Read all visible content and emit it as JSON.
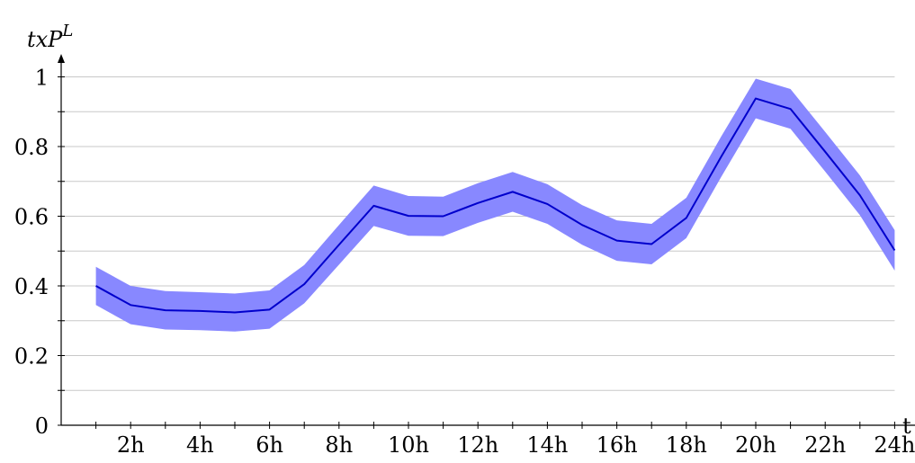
{
  "chart_data": {
    "type": "line",
    "title": "",
    "ylabel": "txP",
    "ylabel_superscript": "L",
    "xlabel": "t",
    "ylim": [
      0,
      1.1
    ],
    "xlim": [
      0,
      24
    ],
    "grid": "horizontal",
    "y_ticks": [
      0,
      0.2,
      0.4,
      0.6,
      0.8,
      1
    ],
    "y_tick_labels": [
      "0",
      "0.2",
      "0.4",
      "0.6",
      "0.8",
      "1"
    ],
    "x_ticks": [
      2,
      4,
      6,
      8,
      10,
      12,
      14,
      16,
      18,
      20,
      22,
      24
    ],
    "x_tick_labels": [
      "2h",
      "4h",
      "6h",
      "8h",
      "10h",
      "12h",
      "14h",
      "16h",
      "18h",
      "20h",
      "22h",
      "24h"
    ],
    "colors": {
      "line": "#0000cc",
      "band": "#8888ff"
    },
    "series": [
      {
        "x": [
          1,
          2,
          3,
          4,
          5,
          6,
          7,
          8,
          9,
          10,
          11,
          12,
          13,
          14,
          15,
          16,
          17,
          18,
          19,
          20,
          21,
          22,
          23,
          24
        ],
        "values": [
          0.4,
          0.345,
          0.33,
          0.328,
          0.324,
          0.332,
          0.405,
          0.518,
          0.63,
          0.601,
          0.6,
          0.638,
          0.67,
          0.635,
          0.575,
          0.53,
          0.52,
          0.595,
          0.77,
          0.938,
          0.908,
          0.785,
          0.66,
          0.502
        ],
        "upper": [
          0.455,
          0.4,
          0.385,
          0.382,
          0.378,
          0.387,
          0.46,
          0.575,
          0.688,
          0.658,
          0.656,
          0.695,
          0.727,
          0.692,
          0.632,
          0.588,
          0.578,
          0.653,
          0.828,
          0.995,
          0.965,
          0.842,
          0.717,
          0.56
        ],
        "lower": [
          0.345,
          0.29,
          0.275,
          0.273,
          0.269,
          0.277,
          0.35,
          0.461,
          0.572,
          0.544,
          0.543,
          0.581,
          0.613,
          0.578,
          0.518,
          0.472,
          0.462,
          0.537,
          0.712,
          0.881,
          0.851,
          0.728,
          0.603,
          0.444
        ]
      }
    ]
  }
}
